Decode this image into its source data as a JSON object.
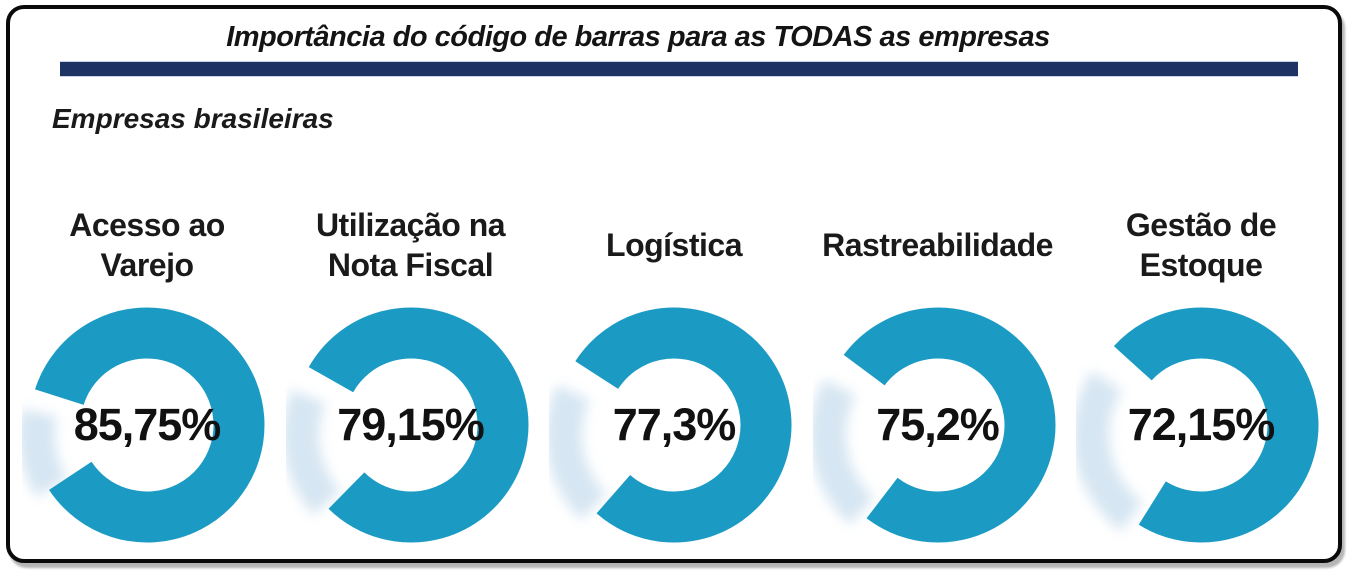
{
  "header": {
    "title": "Importância do código de barras para as TODAS as empresas",
    "subtitle": "Empresas brasileiras"
  },
  "colors": {
    "ring": "#1b9bc4",
    "ring_remainder": "#cce0ef",
    "divider_bar": "#1e3264",
    "label_text": "#1a1a1a",
    "frame_border": "#0a0a0a",
    "background": "#ffffff"
  },
  "chart_data": {
    "type": "donut",
    "title": "Importância do código de barras para as TODAS as empresas",
    "subtitle": "Empresas brasileiras",
    "unit": "%",
    "decimal_separator": ",",
    "legend": "none",
    "categories": [
      "Acesso ao Varejo",
      "Utilização na Nota Fiscal",
      "Logística",
      "Rastreabilidade",
      "Gestão de Estoque"
    ],
    "category_lines": [
      [
        "Acesso ao",
        "Varejo"
      ],
      [
        "Utilização na",
        "Nota Fiscal"
      ],
      [
        "Logística"
      ],
      [
        "Rastreabilidade"
      ],
      [
        "Gestão de",
        "Estoque"
      ]
    ],
    "values": [
      85.75,
      79.15,
      77.3,
      75.2,
      72.15
    ],
    "value_labels": [
      "85,75%",
      "79,15%",
      "77,3%",
      "75,2%",
      "72,15%"
    ],
    "ring_color": "#1b9bc4",
    "remainder_color": "#cce0ef",
    "gap_center_deg": 172
  }
}
